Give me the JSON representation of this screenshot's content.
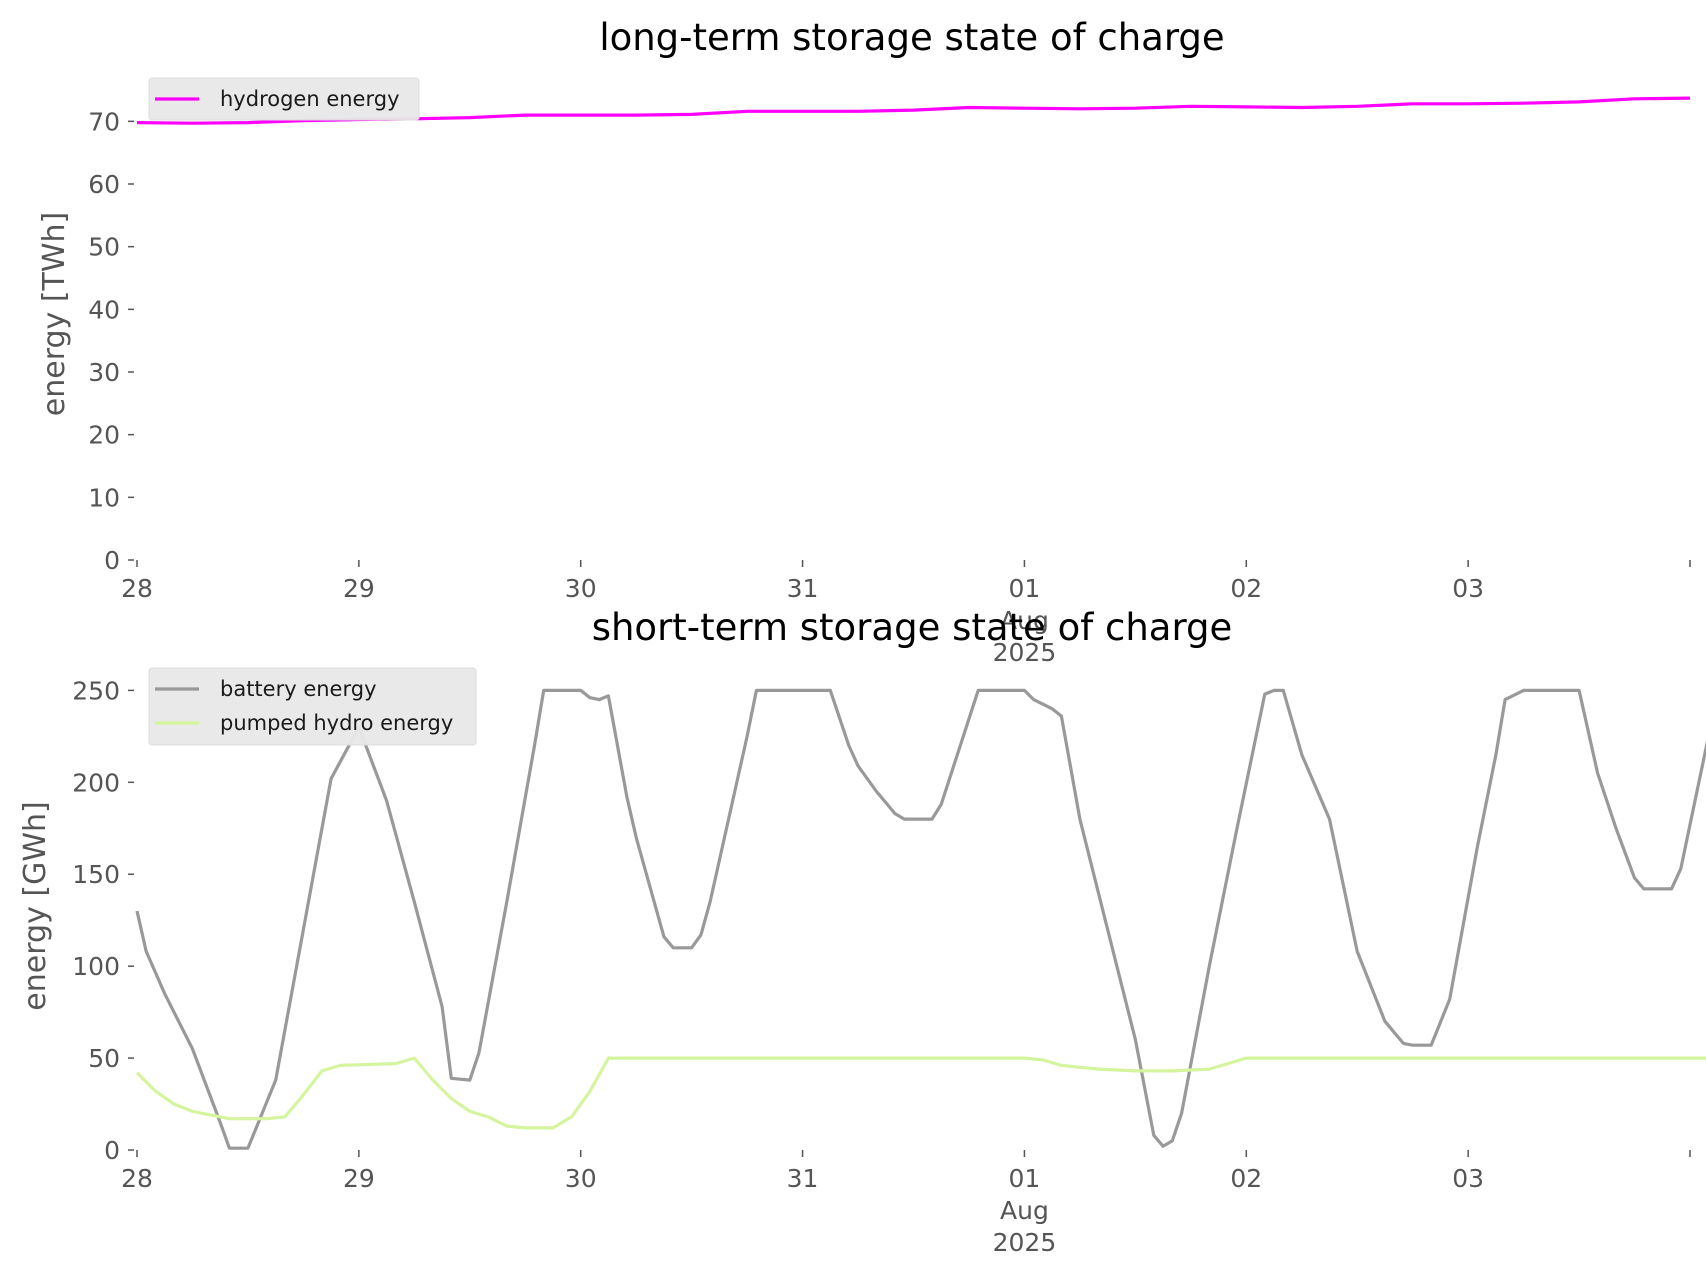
{
  "chart_data": [
    {
      "type": "line",
      "title": "long-term storage state of charge",
      "xlabel": "",
      "ylabel": "energy [TWh]",
      "x_range": [
        "2025-07-28",
        "2025-08-04"
      ],
      "ylim": [
        0,
        75
      ],
      "x_tick_labels": [
        {
          "date": "2025-07-28",
          "lines": [
            "28"
          ]
        },
        {
          "date": "2025-07-29",
          "lines": [
            "29"
          ]
        },
        {
          "date": "2025-07-30",
          "lines": [
            "30"
          ]
        },
        {
          "date": "2025-07-31",
          "lines": [
            "31"
          ]
        },
        {
          "date": "2025-08-01",
          "lines": [
            "01",
            "Aug",
            "2025"
          ]
        },
        {
          "date": "2025-08-02",
          "lines": [
            "02"
          ]
        },
        {
          "date": "2025-08-03",
          "lines": [
            "03"
          ]
        }
      ],
      "y_ticks": [
        0,
        10,
        20,
        30,
        40,
        50,
        60,
        70
      ],
      "grid": false,
      "legend_position": "upper-left",
      "series": [
        {
          "name": "hydrogen energy",
          "color": "#ff00ff",
          "points": [
            [
              "2025-07-28T00:00",
              69.8
            ],
            [
              "2025-07-28T06:00",
              69.7
            ],
            [
              "2025-07-28T12:00",
              69.8
            ],
            [
              "2025-07-28T18:00",
              70.1
            ],
            [
              "2025-07-29T00:00",
              70.3
            ],
            [
              "2025-07-29T06:00",
              70.4
            ],
            [
              "2025-07-29T12:00",
              70.6
            ],
            [
              "2025-07-29T18:00",
              71.0
            ],
            [
              "2025-07-30T00:00",
              71.0
            ],
            [
              "2025-07-30T06:00",
              71.0
            ],
            [
              "2025-07-30T12:00",
              71.1
            ],
            [
              "2025-07-30T18:00",
              71.6
            ],
            [
              "2025-07-31T00:00",
              71.6
            ],
            [
              "2025-07-31T06:00",
              71.6
            ],
            [
              "2025-07-31T12:00",
              71.8
            ],
            [
              "2025-07-31T18:00",
              72.2
            ],
            [
              "2025-08-01T00:00",
              72.1
            ],
            [
              "2025-08-01T06:00",
              72.0
            ],
            [
              "2025-08-01T12:00",
              72.1
            ],
            [
              "2025-08-01T18:00",
              72.4
            ],
            [
              "2025-08-02T00:00",
              72.3
            ],
            [
              "2025-08-02T06:00",
              72.2
            ],
            [
              "2025-08-02T12:00",
              72.4
            ],
            [
              "2025-08-02T18:00",
              72.8
            ],
            [
              "2025-08-03T00:00",
              72.8
            ],
            [
              "2025-08-03T06:00",
              72.9
            ],
            [
              "2025-08-03T12:00",
              73.1
            ],
            [
              "2025-08-03T18:00",
              73.6
            ],
            [
              "2025-08-04T00:00",
              73.7
            ]
          ]
        }
      ]
    },
    {
      "type": "line",
      "title": "short-term storage state of charge",
      "xlabel": "",
      "ylabel": "energy [GWh]",
      "x_range": [
        "2025-07-28",
        "2025-08-04"
      ],
      "ylim": [
        0,
        260
      ],
      "x_tick_labels": [
        {
          "date": "2025-07-28",
          "lines": [
            "28"
          ]
        },
        {
          "date": "2025-07-29",
          "lines": [
            "29"
          ]
        },
        {
          "date": "2025-07-30",
          "lines": [
            "30"
          ]
        },
        {
          "date": "2025-07-31",
          "lines": [
            "31"
          ]
        },
        {
          "date": "2025-08-01",
          "lines": [
            "01",
            "Aug",
            "2025"
          ]
        },
        {
          "date": "2025-08-02",
          "lines": [
            "02"
          ]
        },
        {
          "date": "2025-08-03",
          "lines": [
            "03"
          ]
        }
      ],
      "y_ticks": [
        0,
        50,
        100,
        150,
        200,
        250
      ],
      "grid": false,
      "legend_position": "upper-left",
      "series": [
        {
          "name": "battery energy",
          "color": "#999999",
          "points": [
            [
              "2025-07-28T00:00",
              130
            ],
            [
              "2025-07-28T01:00",
              108
            ],
            [
              "2025-07-28T03:00",
              85
            ],
            [
              "2025-07-28T06:00",
              55
            ],
            [
              "2025-07-28T09:00",
              15
            ],
            [
              "2025-07-28T10:00",
              1
            ],
            [
              "2025-07-28T12:00",
              1
            ],
            [
              "2025-07-28T15:00",
              38
            ],
            [
              "2025-07-28T18:00",
              120
            ],
            [
              "2025-07-28T21:00",
              202
            ],
            [
              "2025-07-29T00:00",
              230
            ],
            [
              "2025-07-29T03:00",
              190
            ],
            [
              "2025-07-29T06:00",
              135
            ],
            [
              "2025-07-29T09:00",
              78
            ],
            [
              "2025-07-29T10:00",
              39
            ],
            [
              "2025-07-29T12:00",
              38
            ],
            [
              "2025-07-29T13:00",
              53
            ],
            [
              "2025-07-29T16:00",
              135
            ],
            [
              "2025-07-29T19:00",
              220
            ],
            [
              "2025-07-29T20:00",
              250
            ],
            [
              "2025-07-30T00:00",
              250
            ],
            [
              "2025-07-30T01:00",
              246
            ],
            [
              "2025-07-30T02:00",
              245
            ],
            [
              "2025-07-30T03:00",
              247
            ],
            [
              "2025-07-30T05:00",
              192
            ],
            [
              "2025-07-30T06:00",
              170
            ],
            [
              "2025-07-30T09:00",
              116
            ],
            [
              "2025-07-30T10:00",
              110
            ],
            [
              "2025-07-30T12:00",
              110
            ],
            [
              "2025-07-30T13:00",
              117
            ],
            [
              "2025-07-30T14:00",
              135
            ],
            [
              "2025-07-30T18:00",
              225
            ],
            [
              "2025-07-30T19:00",
              250
            ],
            [
              "2025-07-31T00:00",
              250
            ],
            [
              "2025-07-31T03:00",
              250
            ],
            [
              "2025-07-31T05:00",
              220
            ],
            [
              "2025-07-31T06:00",
              209
            ],
            [
              "2025-07-31T08:00",
              195
            ],
            [
              "2025-07-31T10:00",
              183
            ],
            [
              "2025-07-31T11:00",
              180
            ],
            [
              "2025-07-31T14:00",
              180
            ],
            [
              "2025-07-31T15:00",
              188
            ],
            [
              "2025-07-31T19:00",
              250
            ],
            [
              "2025-08-01T00:00",
              250
            ],
            [
              "2025-08-01T01:00",
              245
            ],
            [
              "2025-08-01T03:00",
              240
            ],
            [
              "2025-08-01T04:00",
              236
            ],
            [
              "2025-08-01T06:00",
              180
            ],
            [
              "2025-08-01T09:00",
              120
            ],
            [
              "2025-08-01T12:00",
              60
            ],
            [
              "2025-08-01T14:00",
              8
            ],
            [
              "2025-08-01T15:00",
              2
            ],
            [
              "2025-08-01T16:00",
              5
            ],
            [
              "2025-08-01T17:00",
              20
            ],
            [
              "2025-08-01T20:00",
              100
            ],
            [
              "2025-08-01T23:00",
              175
            ],
            [
              "2025-08-02T02:00",
              248
            ],
            [
              "2025-08-02T03:00",
              250
            ],
            [
              "2025-08-02T04:00",
              250
            ],
            [
              "2025-08-02T06:00",
              215
            ],
            [
              "2025-08-02T09:00",
              180
            ],
            [
              "2025-08-02T12:00",
              108
            ],
            [
              "2025-08-02T15:00",
              70
            ],
            [
              "2025-08-02T17:00",
              58
            ],
            [
              "2025-08-02T18:00",
              57
            ],
            [
              "2025-08-02T20:00",
              57
            ],
            [
              "2025-08-02T22:00",
              82
            ],
            [
              "2025-08-03T01:00",
              165
            ],
            [
              "2025-08-03T03:00",
              215
            ],
            [
              "2025-08-03T04:00",
              245
            ],
            [
              "2025-08-03T06:00",
              250
            ],
            [
              "2025-08-03T12:00",
              250
            ],
            [
              "2025-08-03T14:00",
              205
            ],
            [
              "2025-08-03T16:00",
              175
            ],
            [
              "2025-08-03T18:00",
              148
            ],
            [
              "2025-08-03T19:00",
              142
            ],
            [
              "2025-08-03T22:00",
              142
            ],
            [
              "2025-08-03T23:00",
              153
            ],
            [
              "2025-08-04T02:00",
              225
            ],
            [
              "2025-08-04T03:00",
              250
            ],
            [
              "2025-08-04T12:00",
              250
            ]
          ]
        },
        {
          "name": "pumped hydro energy",
          "color": "#d4f59e",
          "points": [
            [
              "2025-07-28T00:00",
              42
            ],
            [
              "2025-07-28T02:00",
              32
            ],
            [
              "2025-07-28T04:00",
              25
            ],
            [
              "2025-07-28T06:00",
              21
            ],
            [
              "2025-07-28T08:00",
              19
            ],
            [
              "2025-07-28T10:00",
              17
            ],
            [
              "2025-07-28T14:00",
              17
            ],
            [
              "2025-07-28T16:00",
              18
            ],
            [
              "2025-07-28T18:00",
              30
            ],
            [
              "2025-07-28T20:00",
              43
            ],
            [
              "2025-07-28T22:00",
              46
            ],
            [
              "2025-07-29T04:00",
              47
            ],
            [
              "2025-07-29T06:00",
              50
            ],
            [
              "2025-07-29T08:00",
              38
            ],
            [
              "2025-07-29T10:00",
              28
            ],
            [
              "2025-07-29T12:00",
              21
            ],
            [
              "2025-07-29T14:00",
              18
            ],
            [
              "2025-07-29T16:00",
              13
            ],
            [
              "2025-07-29T18:00",
              12
            ],
            [
              "2025-07-29T21:00",
              12
            ],
            [
              "2025-07-29T23:00",
              18
            ],
            [
              "2025-07-30T01:00",
              32
            ],
            [
              "2025-07-30T03:00",
              50
            ],
            [
              "2025-07-30T12:00",
              50
            ],
            [
              "2025-08-01T00:00",
              50
            ],
            [
              "2025-08-01T02:00",
              49
            ],
            [
              "2025-08-01T04:00",
              46
            ],
            [
              "2025-08-01T06:00",
              45
            ],
            [
              "2025-08-01T08:00",
              44
            ],
            [
              "2025-08-01T12:00",
              43
            ],
            [
              "2025-08-01T16:00",
              43
            ],
            [
              "2025-08-01T20:00",
              44
            ],
            [
              "2025-08-01T22:00",
              47
            ],
            [
              "2025-08-02T00:00",
              50
            ],
            [
              "2025-08-04T12:00",
              50
            ]
          ]
        }
      ]
    }
  ]
}
